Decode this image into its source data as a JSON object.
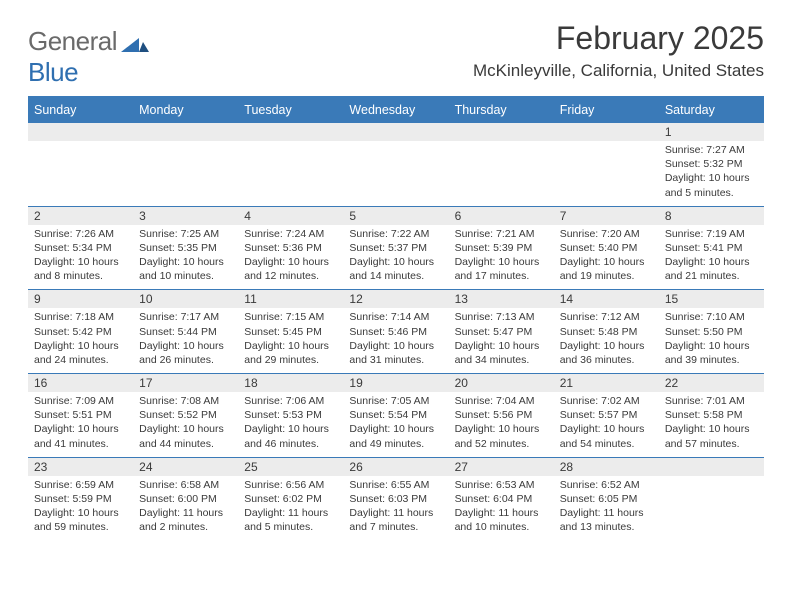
{
  "brand": {
    "name_part1": "General",
    "name_part2": "Blue"
  },
  "title": "February 2025",
  "location": "McKinleyville, California, United States",
  "colors": {
    "header_bg": "#3a7ab8",
    "header_text": "#ffffff",
    "daynum_bg": "#ececec",
    "rule": "#3a7ab8",
    "text": "#3a3a3a",
    "logo_gray": "#6a6a6a",
    "logo_blue": "#2f6fb0"
  },
  "day_names": [
    "Sunday",
    "Monday",
    "Tuesday",
    "Wednesday",
    "Thursday",
    "Friday",
    "Saturday"
  ],
  "weeks": [
    [
      {
        "day": null
      },
      {
        "day": null
      },
      {
        "day": null
      },
      {
        "day": null
      },
      {
        "day": null
      },
      {
        "day": null
      },
      {
        "day": "1",
        "sunrise": "Sunrise: 7:27 AM",
        "sunset": "Sunset: 5:32 PM",
        "daylight": "Daylight: 10 hours and 5 minutes."
      }
    ],
    [
      {
        "day": "2",
        "sunrise": "Sunrise: 7:26 AM",
        "sunset": "Sunset: 5:34 PM",
        "daylight": "Daylight: 10 hours and 8 minutes."
      },
      {
        "day": "3",
        "sunrise": "Sunrise: 7:25 AM",
        "sunset": "Sunset: 5:35 PM",
        "daylight": "Daylight: 10 hours and 10 minutes."
      },
      {
        "day": "4",
        "sunrise": "Sunrise: 7:24 AM",
        "sunset": "Sunset: 5:36 PM",
        "daylight": "Daylight: 10 hours and 12 minutes."
      },
      {
        "day": "5",
        "sunrise": "Sunrise: 7:22 AM",
        "sunset": "Sunset: 5:37 PM",
        "daylight": "Daylight: 10 hours and 14 minutes."
      },
      {
        "day": "6",
        "sunrise": "Sunrise: 7:21 AM",
        "sunset": "Sunset: 5:39 PM",
        "daylight": "Daylight: 10 hours and 17 minutes."
      },
      {
        "day": "7",
        "sunrise": "Sunrise: 7:20 AM",
        "sunset": "Sunset: 5:40 PM",
        "daylight": "Daylight: 10 hours and 19 minutes."
      },
      {
        "day": "8",
        "sunrise": "Sunrise: 7:19 AM",
        "sunset": "Sunset: 5:41 PM",
        "daylight": "Daylight: 10 hours and 21 minutes."
      }
    ],
    [
      {
        "day": "9",
        "sunrise": "Sunrise: 7:18 AM",
        "sunset": "Sunset: 5:42 PM",
        "daylight": "Daylight: 10 hours and 24 minutes."
      },
      {
        "day": "10",
        "sunrise": "Sunrise: 7:17 AM",
        "sunset": "Sunset: 5:44 PM",
        "daylight": "Daylight: 10 hours and 26 minutes."
      },
      {
        "day": "11",
        "sunrise": "Sunrise: 7:15 AM",
        "sunset": "Sunset: 5:45 PM",
        "daylight": "Daylight: 10 hours and 29 minutes."
      },
      {
        "day": "12",
        "sunrise": "Sunrise: 7:14 AM",
        "sunset": "Sunset: 5:46 PM",
        "daylight": "Daylight: 10 hours and 31 minutes."
      },
      {
        "day": "13",
        "sunrise": "Sunrise: 7:13 AM",
        "sunset": "Sunset: 5:47 PM",
        "daylight": "Daylight: 10 hours and 34 minutes."
      },
      {
        "day": "14",
        "sunrise": "Sunrise: 7:12 AM",
        "sunset": "Sunset: 5:48 PM",
        "daylight": "Daylight: 10 hours and 36 minutes."
      },
      {
        "day": "15",
        "sunrise": "Sunrise: 7:10 AM",
        "sunset": "Sunset: 5:50 PM",
        "daylight": "Daylight: 10 hours and 39 minutes."
      }
    ],
    [
      {
        "day": "16",
        "sunrise": "Sunrise: 7:09 AM",
        "sunset": "Sunset: 5:51 PM",
        "daylight": "Daylight: 10 hours and 41 minutes."
      },
      {
        "day": "17",
        "sunrise": "Sunrise: 7:08 AM",
        "sunset": "Sunset: 5:52 PM",
        "daylight": "Daylight: 10 hours and 44 minutes."
      },
      {
        "day": "18",
        "sunrise": "Sunrise: 7:06 AM",
        "sunset": "Sunset: 5:53 PM",
        "daylight": "Daylight: 10 hours and 46 minutes."
      },
      {
        "day": "19",
        "sunrise": "Sunrise: 7:05 AM",
        "sunset": "Sunset: 5:54 PM",
        "daylight": "Daylight: 10 hours and 49 minutes."
      },
      {
        "day": "20",
        "sunrise": "Sunrise: 7:04 AM",
        "sunset": "Sunset: 5:56 PM",
        "daylight": "Daylight: 10 hours and 52 minutes."
      },
      {
        "day": "21",
        "sunrise": "Sunrise: 7:02 AM",
        "sunset": "Sunset: 5:57 PM",
        "daylight": "Daylight: 10 hours and 54 minutes."
      },
      {
        "day": "22",
        "sunrise": "Sunrise: 7:01 AM",
        "sunset": "Sunset: 5:58 PM",
        "daylight": "Daylight: 10 hours and 57 minutes."
      }
    ],
    [
      {
        "day": "23",
        "sunrise": "Sunrise: 6:59 AM",
        "sunset": "Sunset: 5:59 PM",
        "daylight": "Daylight: 10 hours and 59 minutes."
      },
      {
        "day": "24",
        "sunrise": "Sunrise: 6:58 AM",
        "sunset": "Sunset: 6:00 PM",
        "daylight": "Daylight: 11 hours and 2 minutes."
      },
      {
        "day": "25",
        "sunrise": "Sunrise: 6:56 AM",
        "sunset": "Sunset: 6:02 PM",
        "daylight": "Daylight: 11 hours and 5 minutes."
      },
      {
        "day": "26",
        "sunrise": "Sunrise: 6:55 AM",
        "sunset": "Sunset: 6:03 PM",
        "daylight": "Daylight: 11 hours and 7 minutes."
      },
      {
        "day": "27",
        "sunrise": "Sunrise: 6:53 AM",
        "sunset": "Sunset: 6:04 PM",
        "daylight": "Daylight: 11 hours and 10 minutes."
      },
      {
        "day": "28",
        "sunrise": "Sunrise: 6:52 AM",
        "sunset": "Sunset: 6:05 PM",
        "daylight": "Daylight: 11 hours and 13 minutes."
      },
      {
        "day": null
      }
    ]
  ]
}
